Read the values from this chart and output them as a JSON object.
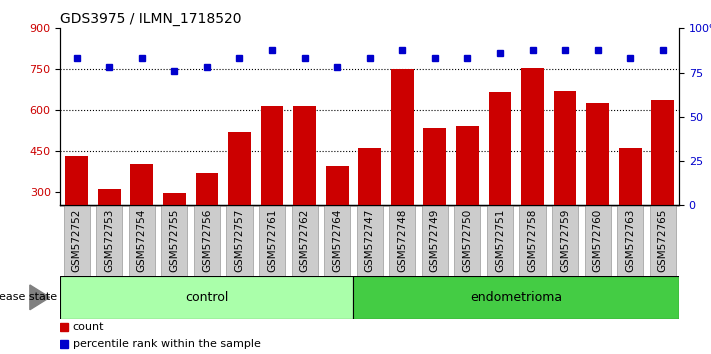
{
  "title": "GDS3975 / ILMN_1718520",
  "samples": [
    "GSM572752",
    "GSM572753",
    "GSM572754",
    "GSM572755",
    "GSM572756",
    "GSM572757",
    "GSM572761",
    "GSM572762",
    "GSM572764",
    "GSM572747",
    "GSM572748",
    "GSM572749",
    "GSM572750",
    "GSM572751",
    "GSM572758",
    "GSM572759",
    "GSM572760",
    "GSM572763",
    "GSM572765"
  ],
  "counts": [
    430,
    310,
    400,
    295,
    370,
    520,
    615,
    615,
    395,
    460,
    750,
    535,
    540,
    665,
    755,
    670,
    625,
    460,
    635
  ],
  "percentiles": [
    83,
    78,
    83,
    76,
    78,
    83,
    88,
    83,
    78,
    83,
    88,
    83,
    83,
    86,
    88,
    88,
    88,
    83,
    88
  ],
  "group_labels": [
    "control",
    "endometrioma"
  ],
  "control_count": 9,
  "endometrioma_count": 10,
  "ylim_left": [
    250,
    900
  ],
  "ylim_right": [
    0,
    100
  ],
  "yticks_left": [
    300,
    450,
    600,
    750,
    900
  ],
  "yticks_right": [
    0,
    25,
    50,
    75,
    100
  ],
  "bar_color": "#cc0000",
  "dot_color": "#0000cc",
  "control_bg": "#aaffaa",
  "endo_bg": "#44cc44",
  "sample_bg": "#cccccc",
  "sample_border": "#999999",
  "bg_white": "#ffffff",
  "dotted_line_color": "#000000",
  "title_fontsize": 10,
  "label_fontsize": 7.5,
  "tick_fontsize": 8,
  "group_fontsize": 9,
  "legend_fontsize": 8
}
